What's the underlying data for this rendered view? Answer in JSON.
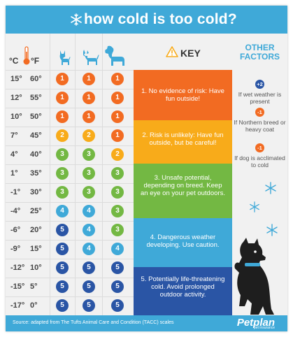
{
  "header": {
    "title": "how cold is too cold?"
  },
  "columns": {
    "celsius": "°C",
    "fahrenheit": "°F"
  },
  "rows": [
    {
      "c": "15°",
      "f": "60°",
      "small": "1",
      "medium": "1",
      "large": "1"
    },
    {
      "c": "12°",
      "f": "55°",
      "small": "1",
      "medium": "1",
      "large": "1"
    },
    {
      "c": "10°",
      "f": "50°",
      "small": "1",
      "medium": "1",
      "large": "1"
    },
    {
      "c": "7°",
      "f": "45°",
      "small": "2",
      "medium": "2",
      "large": "1"
    },
    {
      "c": "4°",
      "f": "40°",
      "small": "3",
      "medium": "3",
      "large": "2"
    },
    {
      "c": "1°",
      "f": "35°",
      "small": "3",
      "medium": "3",
      "large": "3"
    },
    {
      "c": "-1°",
      "f": "30°",
      "small": "3",
      "medium": "3",
      "large": "3"
    },
    {
      "c": "-4°",
      "f": "25°",
      "small": "4",
      "medium": "4",
      "large": "3"
    },
    {
      "c": "-6°",
      "f": "20°",
      "small": "5",
      "medium": "4",
      "large": "3"
    },
    {
      "c": "-9°",
      "f": "15°",
      "small": "5",
      "medium": "4",
      "large": "4"
    },
    {
      "c": "-12°",
      "f": "10°",
      "small": "5",
      "medium": "5",
      "large": "5"
    },
    {
      "c": "-15°",
      "f": "5°",
      "small": "5",
      "medium": "5",
      "large": "5"
    },
    {
      "c": "-17°",
      "f": "0°",
      "small": "5",
      "medium": "5",
      "large": "5"
    }
  ],
  "key": {
    "title": "KEY",
    "levels": [
      {
        "text": "1. No evidence of risk: Have fun outside!",
        "color": "#f26b22"
      },
      {
        "text": "2. Risk is unlikely: Have fun outside, but be careful!",
        "color": "#f8ab1a"
      },
      {
        "text": "3. Unsafe potential, depending on breed. Keep an eye on your pet outdoors.",
        "color": "#73b843"
      },
      {
        "text": "4. Dangerous weather developing. Use caution.",
        "color": "#3fa9d8"
      },
      {
        "text": "5. Potentially life-threatening cold. Avoid prolonged outdoor activity.",
        "color": "#2a55a5"
      }
    ]
  },
  "level_colors": {
    "1": "#f26b22",
    "2": "#f8ab1a",
    "3": "#73b843",
    "4": "#3fa9d8",
    "5": "#2a55a5"
  },
  "other_factors": {
    "title_line1": "OTHER",
    "title_line2": "FACTORS",
    "items": [
      {
        "badge": "+2",
        "text": "If wet weather is present",
        "color": "#2a55a5"
      },
      {
        "badge": "-1",
        "text": "If Northern breed or heavy coat",
        "color": "#f26b22"
      },
      {
        "badge": "-1",
        "text": "If dog is acclimated to cold",
        "color": "#f26b22"
      }
    ]
  },
  "footer": {
    "source": "Source: adapted from The Tufts Animal Care and Condition (TACC) scales",
    "brand": "Petplan",
    "brand_sub": "pet insurance"
  }
}
